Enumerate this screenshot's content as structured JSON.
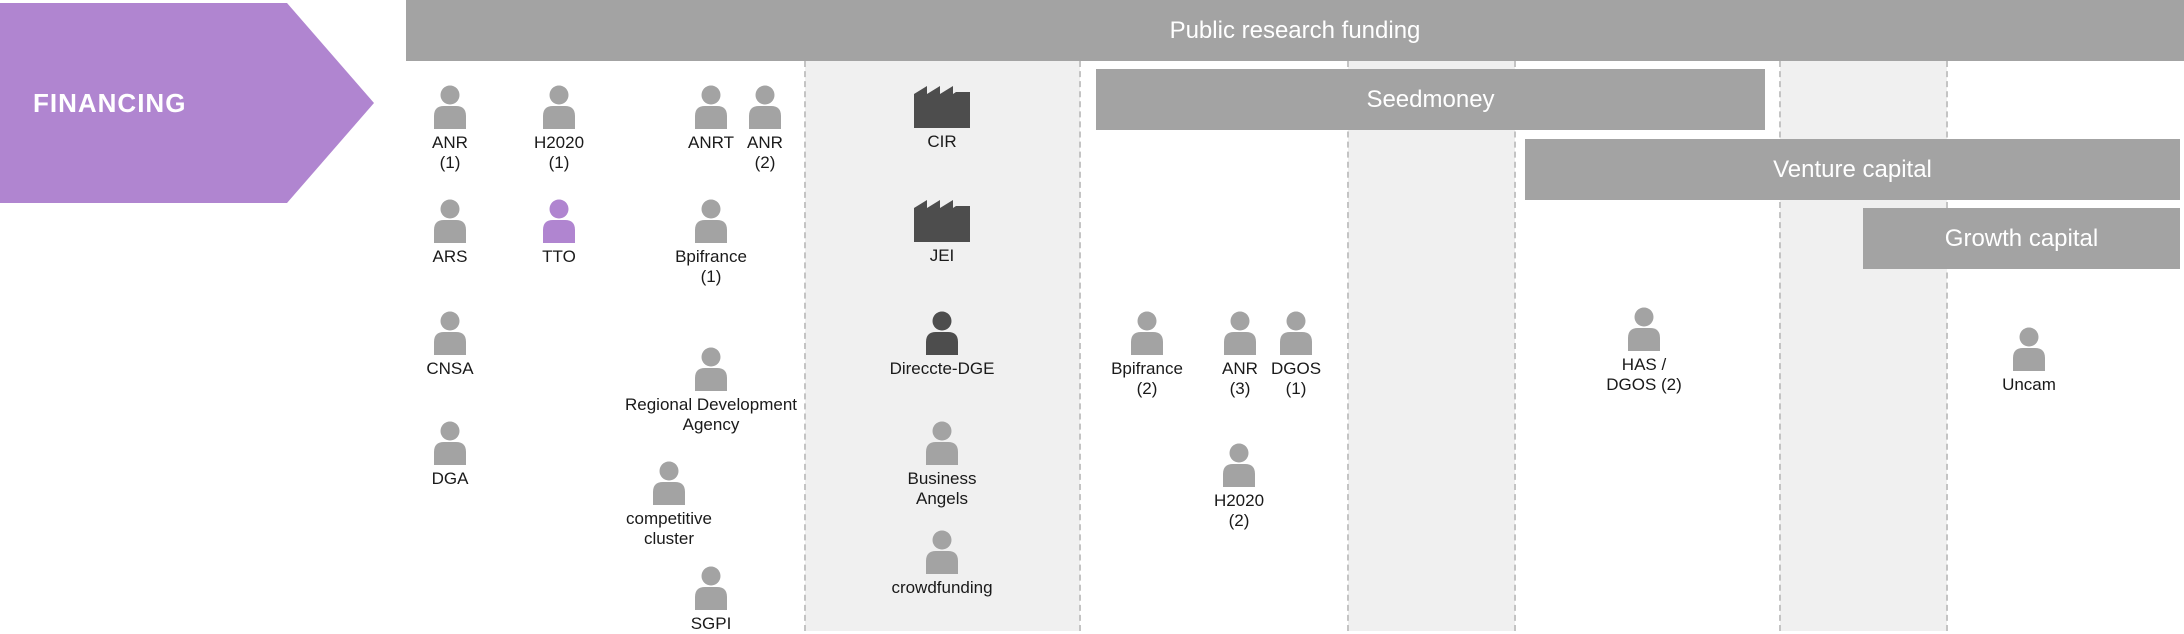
{
  "financing_label": "FINANCING",
  "bars": {
    "public_research_funding": "Public research funding",
    "seedmoney": "Seedmoney",
    "venture_capital": "Venture capital",
    "growth_capital": "Growth capital"
  },
  "colors": {
    "financing": "#b085d0",
    "bar": "#a3a3a3",
    "person": "#a3a3a3",
    "person_highlight": "#b085d0",
    "person_dark": "#4d4d4d",
    "factory": "#4d4d4d",
    "band": "#f0f0f0"
  },
  "actors": {
    "anr1": {
      "label": "ANR\n(1)",
      "icon": "person-icon"
    },
    "h2020_1": {
      "label": "H2020\n(1)",
      "icon": "person-icon"
    },
    "anrt": {
      "label": "ANRT",
      "icon": "person-icon"
    },
    "anr2": {
      "label": "ANR\n(2)",
      "icon": "person-icon"
    },
    "cir": {
      "label": "CIR",
      "icon": "factory-icon"
    },
    "ars": {
      "label": "ARS",
      "icon": "person-icon"
    },
    "tto": {
      "label": "TTO",
      "icon": "person-icon"
    },
    "bpifrance1": {
      "label": "Bpifrance\n(1)",
      "icon": "person-icon"
    },
    "jei": {
      "label": "JEI",
      "icon": "factory-icon"
    },
    "cnsa": {
      "label": "CNSA",
      "icon": "person-icon"
    },
    "regional_dev": {
      "label": "Regional Development\nAgency",
      "icon": "person-icon"
    },
    "direccte": {
      "label": "Direccte-DGE",
      "icon": "person-icon"
    },
    "bpifrance2": {
      "label": "Bpifrance\n(2)",
      "icon": "person-icon"
    },
    "anr3": {
      "label": "ANR\n(3)",
      "icon": "person-icon"
    },
    "dgos1": {
      "label": "DGOS\n(1)",
      "icon": "person-icon"
    },
    "has_dgos2": {
      "label": "HAS /\nDGOS (2)",
      "icon": "person-icon"
    },
    "uncam": {
      "label": "Uncam",
      "icon": "person-icon"
    },
    "dga": {
      "label": "DGA",
      "icon": "person-icon"
    },
    "business_angels": {
      "label": "Business\nAngels",
      "icon": "person-icon"
    },
    "h2020_2": {
      "label": "H2020\n(2)",
      "icon": "person-icon"
    },
    "competitive_cluster": {
      "label": "competitive\ncluster",
      "icon": "person-icon"
    },
    "crowdfunding": {
      "label": "crowdfunding",
      "icon": "person-icon"
    },
    "sgpi": {
      "label": "SGPI",
      "icon": "person-icon"
    }
  }
}
